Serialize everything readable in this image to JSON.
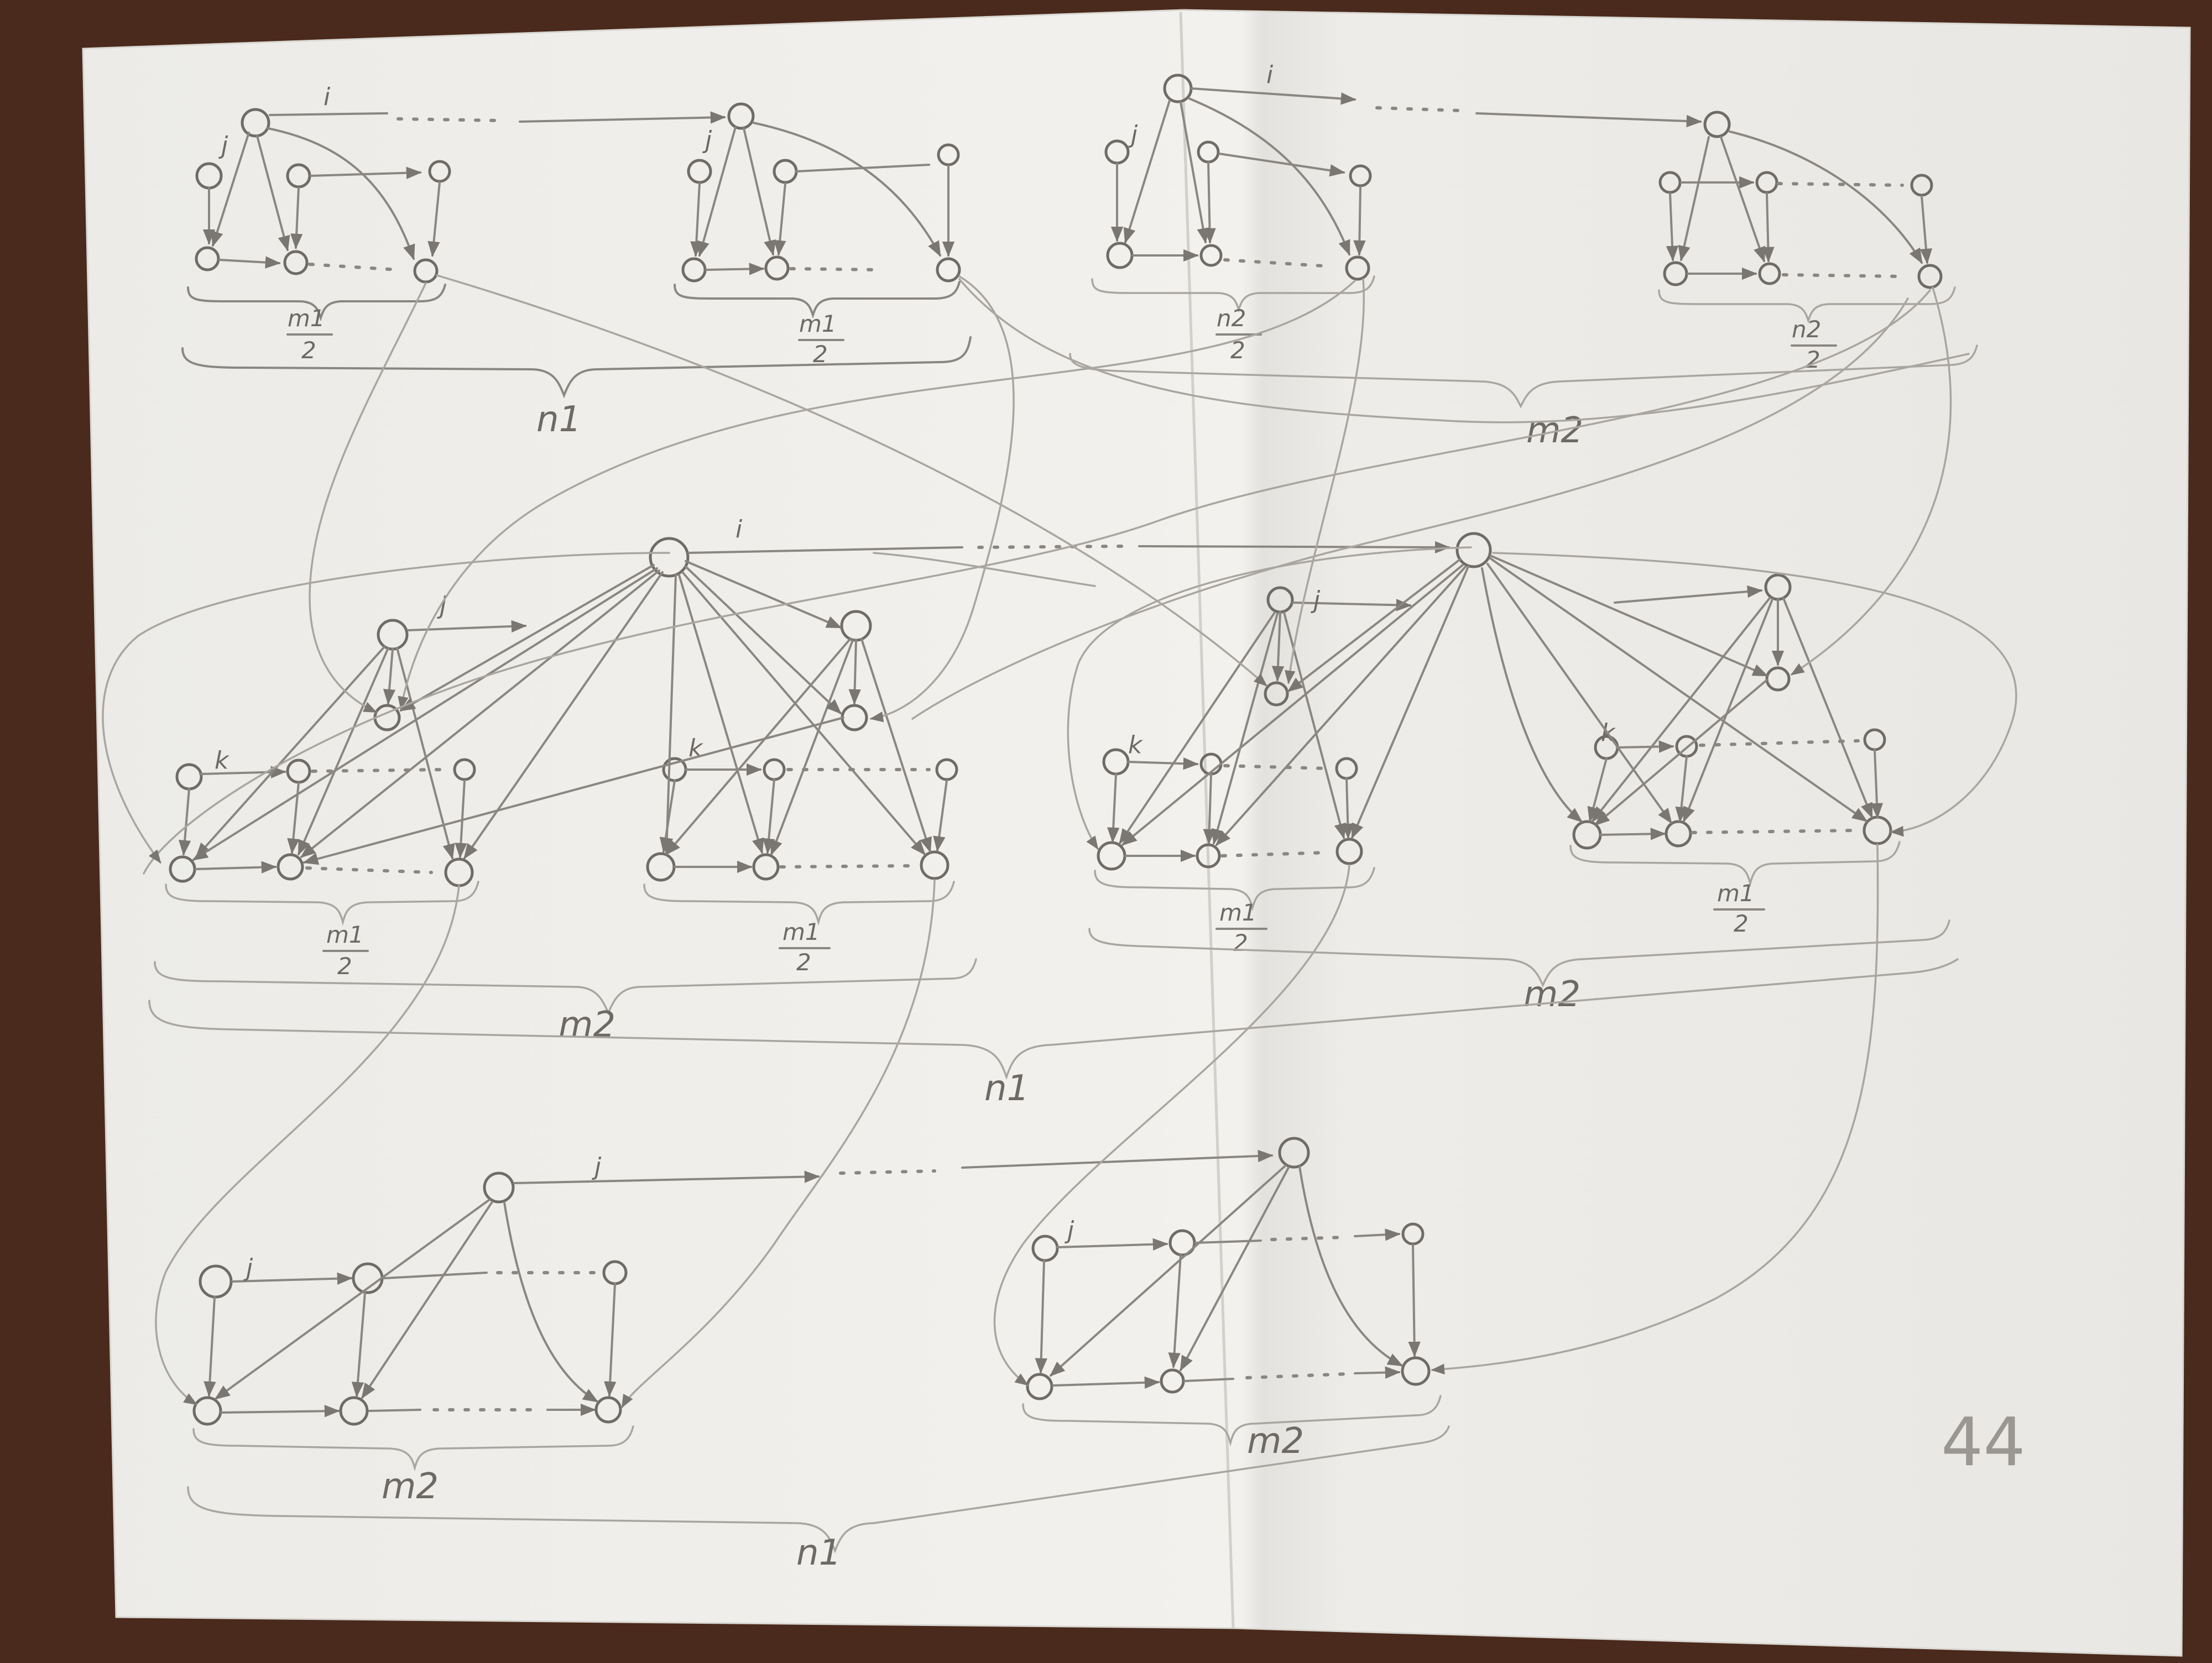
{
  "labels": {
    "top_left_edge": "i",
    "top_left_j": "j",
    "top_left_frac_1": {
      "num": "m1",
      "den": "2"
    },
    "top_left_frac_2": {
      "num": "m1",
      "den": "2"
    },
    "top_left_brace": "n1",
    "top_right_edge": "i",
    "top_right_j": "j",
    "top_right_frac_1": {
      "num": "n2",
      "den": "2"
    },
    "top_right_frac_2": {
      "num": "n2",
      "den": "2"
    },
    "top_right_brace": "m2",
    "middle_edge": "i",
    "middle_left_j": "j",
    "middle_right_j": "j",
    "middle_k_1": "k",
    "middle_k_2": "k",
    "middle_k_3": "k",
    "middle_k_4": "k",
    "middle_frac_1": {
      "num": "m1",
      "den": "2"
    },
    "middle_frac_2": {
      "num": "m1",
      "den": "2"
    },
    "middle_frac_3": {
      "num": "m1",
      "den": "2"
    },
    "middle_frac_4": {
      "num": "m1",
      "den": "2"
    },
    "middle_left_brace": "m2",
    "middle_right_brace": "m2",
    "middle_outer_brace": "n1",
    "bottom_edge": "j",
    "bottom_left_j": "j",
    "bottom_right_j": "j",
    "bottom_left_brace": "m2",
    "bottom_right_brace": "m2",
    "bottom_outer_brace": "n1",
    "page_number": "44"
  },
  "colors": {
    "paper": "#f1efeb",
    "pencil": "#8a8783",
    "background": "#4a2a1c"
  }
}
